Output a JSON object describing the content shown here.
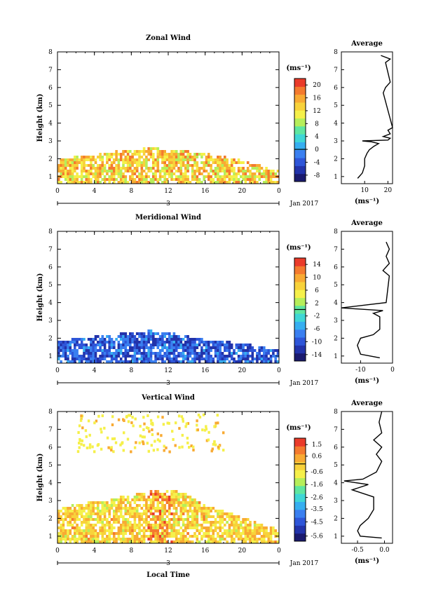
{
  "chart_data": [
    {
      "type": "heatmap",
      "title": "Zonal Wind",
      "ylabel": "Height (km)",
      "xlabel": "",
      "xlim": [
        0,
        24
      ],
      "ylim": [
        0.6,
        8
      ],
      "x_ticks": [
        "0",
        "4",
        "8",
        "12",
        "16",
        "20",
        "0"
      ],
      "y_ticks": [
        "1",
        "2",
        "3",
        "4",
        "5",
        "6",
        "7",
        "8"
      ],
      "date_day": "3",
      "date_label": "Jan 2017",
      "colorbar_unit": "(ms⁻¹)",
      "colorbar_ticks": [
        "-8",
        "-4",
        "0",
        "4",
        "8",
        "12",
        "16",
        "20"
      ],
      "colorbar_range": [
        -10,
        22
      ],
      "data_top_height_km": [
        2.0,
        2.2,
        2.3,
        2.5,
        2.6,
        2.7,
        2.6,
        2.5,
        2.4,
        2.2,
        2.0,
        1.7,
        1.4
      ],
      "dominant_values_ms": "4 to 14 (yellow/orange), locally up to 16",
      "profile": {
        "title": "Average",
        "xlabel": "(ms⁻¹)",
        "x_ticks": [
          "10",
          "20"
        ],
        "xlim": [
          0,
          22
        ],
        "y_ticks": [
          "1",
          "2",
          "3",
          "4",
          "5",
          "6",
          "7",
          "8"
        ],
        "points": [
          [
            7,
            0.9
          ],
          [
            9,
            1.2
          ],
          [
            10,
            1.6
          ],
          [
            10,
            2.0
          ],
          [
            11,
            2.3
          ],
          [
            12,
            2.5
          ],
          [
            14,
            2.7
          ],
          [
            16,
            2.85
          ],
          [
            13,
            2.95
          ],
          [
            9,
            3.0
          ],
          [
            20,
            3.05
          ],
          [
            21,
            3.15
          ],
          [
            18,
            3.25
          ],
          [
            21,
            3.4
          ],
          [
            20,
            3.6
          ],
          [
            22,
            3.75
          ],
          [
            18,
            5.7
          ],
          [
            19,
            6.0
          ],
          [
            21,
            6.3
          ],
          [
            19,
            7.4
          ],
          [
            21,
            7.6
          ],
          [
            17,
            7.8
          ]
        ]
      }
    },
    {
      "type": "heatmap",
      "title": "Meridional Wind",
      "ylabel": "Height (km)",
      "xlabel": "",
      "xlim": [
        0,
        24
      ],
      "ylim": [
        0.6,
        8
      ],
      "x_ticks": [
        "0",
        "4",
        "8",
        "12",
        "16",
        "20",
        "0"
      ],
      "y_ticks": [
        "1",
        "2",
        "3",
        "4",
        "5",
        "6",
        "7",
        "8"
      ],
      "date_day": "3",
      "date_label": "Jan 2017",
      "colorbar_unit": "(ms⁻¹)",
      "colorbar_ticks": [
        "-14",
        "-10",
        "-6",
        "-2",
        "2",
        "6",
        "10",
        "14"
      ],
      "colorbar_range": [
        -16,
        16
      ],
      "data_top_height_km": [
        1.9,
        2.1,
        2.2,
        2.3,
        2.4,
        2.5,
        2.4,
        2.2,
        2.0,
        1.9,
        1.8,
        1.6,
        1.4
      ],
      "dominant_values_ms": "-14 to -8 (blue)",
      "profile": {
        "title": "Average",
        "xlabel": "(ms⁻¹)",
        "x_ticks": [
          "-10",
          "0"
        ],
        "xlim": [
          -16,
          0
        ],
        "y_ticks": [
          "1",
          "2",
          "3",
          "4",
          "5",
          "6",
          "7",
          "8"
        ],
        "points": [
          [
            -4,
            0.9
          ],
          [
            -10,
            1.1
          ],
          [
            -11,
            1.6
          ],
          [
            -10,
            2.0
          ],
          [
            -6,
            2.2
          ],
          [
            -4,
            2.5
          ],
          [
            -4,
            2.9
          ],
          [
            -4,
            3.2
          ],
          [
            -6,
            3.4
          ],
          [
            -3,
            3.55
          ],
          [
            -16,
            3.7
          ],
          [
            -2,
            4.0
          ],
          [
            -1,
            5.5
          ],
          [
            -3,
            5.8
          ],
          [
            -1,
            6.2
          ],
          [
            -2,
            6.6
          ],
          [
            -1,
            7.0
          ],
          [
            -2,
            7.4
          ]
        ]
      }
    },
    {
      "type": "heatmap",
      "title": "Vertical Wind",
      "ylabel": "Height (km)",
      "xlabel": "Local Time",
      "xlim": [
        0,
        24
      ],
      "ylim": [
        0.6,
        8
      ],
      "x_ticks": [
        "0",
        "4",
        "8",
        "12",
        "16",
        "20",
        "0"
      ],
      "y_ticks": [
        "1",
        "2",
        "3",
        "4",
        "5",
        "6",
        "7",
        "8"
      ],
      "date_day": "3",
      "date_label": "Jan 2017",
      "colorbar_unit": "(ms⁻¹)",
      "colorbar_ticks": [
        "-5.6",
        "-4.5",
        "-3.5",
        "-2.6",
        "-1.6",
        "-0.6",
        "0.6",
        "1.5"
      ],
      "colorbar_range": [
        -6,
        2
      ],
      "data_top_height_km": [
        2.6,
        2.9,
        3.0,
        3.2,
        3.4,
        3.6,
        3.7,
        3.5,
        2.8,
        2.5,
        2.2,
        1.8,
        1.5
      ],
      "dominant_values_ms": "-1 to 0.5 (yellow/orange)",
      "profile": {
        "title": "Average",
        "xlabel": "(ms⁻¹)",
        "x_ticks": [
          "-0.5",
          "0.0"
        ],
        "xlim": [
          -0.8,
          0.15
        ],
        "y_ticks": [
          "1",
          "2",
          "3",
          "4",
          "5",
          "6",
          "7",
          "8"
        ],
        "points": [
          [
            -0.05,
            0.9
          ],
          [
            -0.45,
            1.0
          ],
          [
            -0.5,
            1.3
          ],
          [
            -0.45,
            1.6
          ],
          [
            -0.3,
            2.0
          ],
          [
            -0.2,
            2.5
          ],
          [
            -0.2,
            3.2
          ],
          [
            -0.6,
            3.6
          ],
          [
            -0.3,
            3.9
          ],
          [
            -0.75,
            4.1
          ],
          [
            -0.4,
            4.2
          ],
          [
            -0.15,
            4.6
          ],
          [
            -0.05,
            5.2
          ],
          [
            -0.15,
            5.6
          ],
          [
            -0.05,
            6.0
          ],
          [
            -0.2,
            6.4
          ],
          [
            -0.05,
            6.8
          ],
          [
            -0.1,
            7.4
          ],
          [
            -0.05,
            8.0
          ]
        ]
      }
    }
  ]
}
